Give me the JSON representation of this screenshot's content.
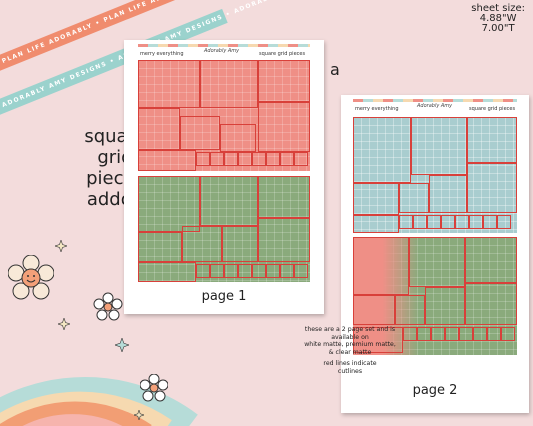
{
  "ribbons": {
    "top": "PLAN LIFE ADORABLY • PLAN LIFE ADORABLY • PLAN LIFE ADORABLY",
    "bottom": "ADORABLY AMY DESIGNS • ADORABLY AMY DESIGNS • ADORABLY AMY DESIGNS"
  },
  "sheet_size": {
    "line1": "sheet size:",
    "line2": "4.88\"W",
    "line3": "7.00\"T"
  },
  "headline": {
    "line1": "square grid",
    "line2": "pieces",
    "line3": "addon"
  },
  "variant_letter": "a",
  "page1": {
    "left_label": "merry everything",
    "logo": "Adorably Amy",
    "right_label": "square grid pieces",
    "caption": "page 1"
  },
  "page2": {
    "left_label": "merry everything",
    "logo": "Adorably Amy",
    "right_label": "square grid pieces",
    "caption": "page 2"
  },
  "info": {
    "line1": "these are a 2 page set and is",
    "line2": "available on",
    "line3": "white matte, premium matte,",
    "line4": "& clear matte",
    "line5": "red lines indicate",
    "line6": "cutlines"
  },
  "colors": {
    "background": "#f3dcdc",
    "pink_grid": "#ef8f86",
    "green_grid": "#8aaa7c",
    "blue_grid": "#a9cdcf",
    "cutline": "#d8403a",
    "ribbon_orange": "#f08c6e",
    "ribbon_teal": "#9bd2cd"
  }
}
